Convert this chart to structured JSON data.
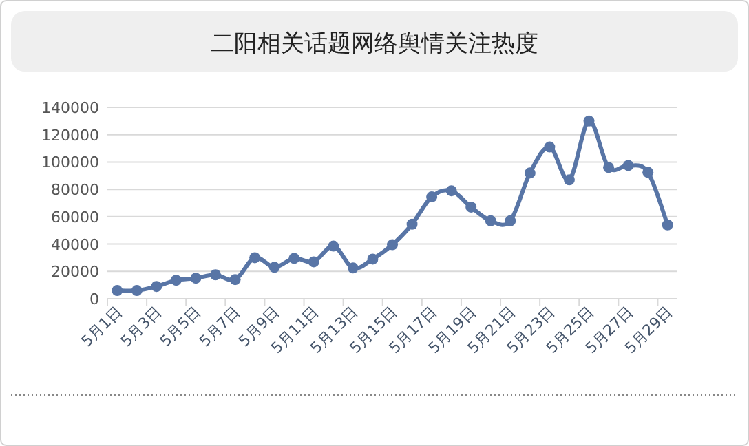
{
  "chart_data": {
    "type": "line",
    "title": "二阳相关话题网络舆情关注热度",
    "categories": [
      "5月1日",
      null,
      "5月3日",
      null,
      "5月5日",
      null,
      "5月7日",
      null,
      "5月9日",
      null,
      "5月11日",
      null,
      "5月13日",
      null,
      "5月15日",
      null,
      "5月17日",
      null,
      "5月19日",
      null,
      "5月21日",
      null,
      "5月23日",
      null,
      "5月25日",
      null,
      "5月27日",
      null,
      "5月29日"
    ],
    "values": [
      6000,
      6000,
      9000,
      13500,
      15000,
      17500,
      14000,
      30000,
      23000,
      29500,
      27000,
      38500,
      22500,
      29000,
      39500,
      54500,
      74500,
      79000,
      67000,
      57000,
      57000,
      92000,
      111000,
      87000,
      130000,
      96000,
      97500,
      92500,
      54000
    ],
    "color": "#5875a6",
    "ylim": [
      0,
      140000
    ],
    "yticks": [
      0,
      20000,
      40000,
      60000,
      80000,
      100000,
      120000,
      140000
    ],
    "grid": "y",
    "marker": "circle",
    "line_style": "solid"
  }
}
